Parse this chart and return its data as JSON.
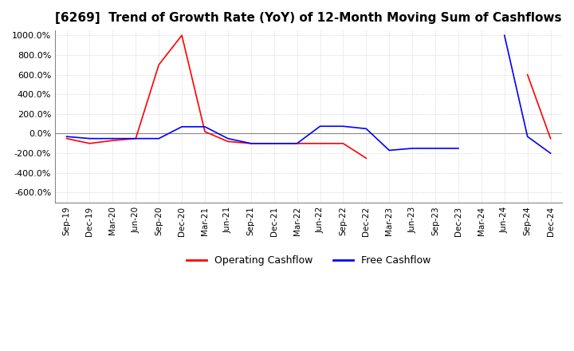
{
  "title": "[6269]  Trend of Growth Rate (YoY) of 12-Month Moving Sum of Cashflows",
  "title_fontsize": 11,
  "ylim": [
    -700,
    1050
  ],
  "yticks": [
    -600,
    -400,
    -200,
    0,
    200,
    400,
    600,
    800,
    1000
  ],
  "ytick_labels": [
    "-600.0%",
    "-400.0%",
    "-200.0%",
    "0.0%",
    "200.0%",
    "400.0%",
    "600.0%",
    "800.0%",
    "1000.0%"
  ],
  "x_labels": [
    "Sep-19",
    "Dec-19",
    "Mar-20",
    "Jun-20",
    "Sep-20",
    "Dec-20",
    "Mar-21",
    "Jun-21",
    "Sep-21",
    "Dec-21",
    "Mar-22",
    "Jun-22",
    "Sep-22",
    "Dec-22",
    "Mar-23",
    "Jun-23",
    "Sep-23",
    "Dec-23",
    "Mar-24",
    "Jun-24",
    "Sep-24",
    "Dec-24"
  ],
  "operating_cashflow": [
    -50,
    -100,
    -70,
    -50,
    700,
    1000,
    20,
    -80,
    -100,
    -100,
    -100,
    -100,
    -100,
    -250,
    null,
    null,
    null,
    null,
    null,
    null,
    600,
    -50
  ],
  "free_cashflow": [
    -30,
    -50,
    -50,
    -50,
    -50,
    70,
    70,
    -50,
    -100,
    -100,
    -100,
    75,
    75,
    50,
    -170,
    -150,
    -150,
    -150,
    null,
    1000,
    -30,
    -200
  ],
  "operating_color": "#ff0000",
  "free_color": "#0000ff",
  "background_color": "#ffffff",
  "grid_color": "#c8c8c8",
  "legend_labels": [
    "Operating Cashflow",
    "Free Cashflow"
  ]
}
